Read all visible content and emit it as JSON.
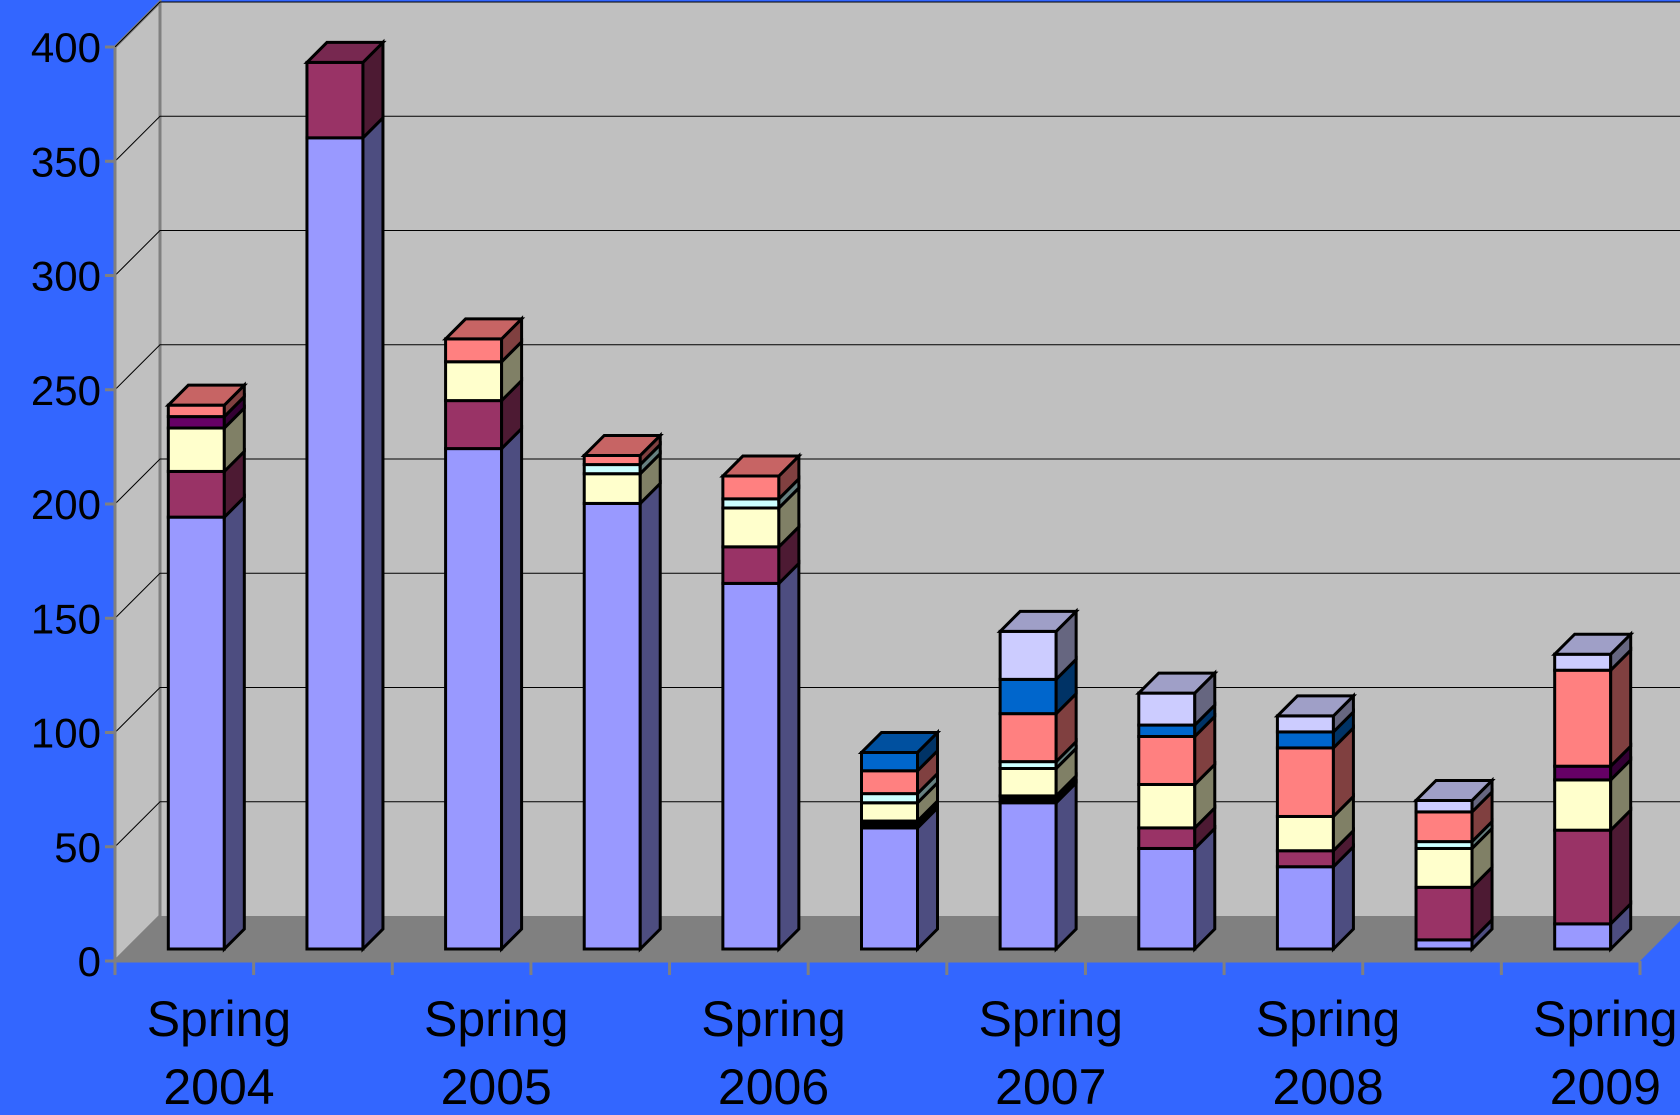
{
  "chart_data": {
    "type": "bar",
    "stacked": true,
    "three_d": true,
    "title": "",
    "xlabel": "",
    "ylabel": "",
    "ylim": [
      0,
      400
    ],
    "yticks": [
      0,
      50,
      100,
      150,
      200,
      250,
      300,
      350,
      400
    ],
    "grid": true,
    "legend": "none",
    "x_tick_labels": [
      [
        "Spring",
        "2004"
      ],
      [
        "Spring",
        "2005"
      ],
      [
        "Spring",
        "2006"
      ],
      [
        "Spring",
        "2007"
      ],
      [
        "Spring",
        "2008"
      ],
      [
        "Spring",
        "2009"
      ]
    ],
    "bar_count": 11,
    "series": [
      {
        "color": "#9999FF",
        "values": [
          189,
          355,
          219,
          195,
          160,
          53,
          64,
          44,
          36,
          4,
          11
        ]
      },
      {
        "color": "#000000",
        "values": [
          0,
          0,
          0,
          0,
          0,
          3,
          3,
          0,
          0,
          0,
          0
        ]
      },
      {
        "color": "#993366",
        "values": [
          20,
          33,
          21,
          0,
          16,
          0,
          0,
          9,
          7,
          23,
          41
        ]
      },
      {
        "color": "#FFFFCC",
        "values": [
          19,
          0,
          17,
          13,
          17,
          8,
          12,
          19,
          15,
          17,
          22
        ]
      },
      {
        "color": "#CCFFFF",
        "values": [
          0,
          0,
          0,
          4,
          4,
          4,
          3,
          0,
          0,
          3,
          0
        ]
      },
      {
        "color": "#660066",
        "values": [
          5,
          0,
          0,
          0,
          0,
          0,
          0,
          0,
          0,
          0,
          6
        ]
      },
      {
        "color": "#FF8080",
        "values": [
          5,
          0,
          10,
          4,
          10,
          10,
          21,
          21,
          30,
          13,
          42
        ]
      },
      {
        "color": "#0066CC",
        "values": [
          0,
          0,
          0,
          0,
          0,
          8,
          15,
          5,
          7,
          0,
          0
        ]
      },
      {
        "color": "#CCCCFF",
        "values": [
          0,
          0,
          0,
          0,
          0,
          0,
          21,
          14,
          7,
          5,
          7
        ]
      }
    ],
    "colors": {
      "background": "#3366FF",
      "wall": "#C0C0C0",
      "floor": "#808080",
      "gridline": "#000000",
      "axis_text": "#000000"
    }
  }
}
